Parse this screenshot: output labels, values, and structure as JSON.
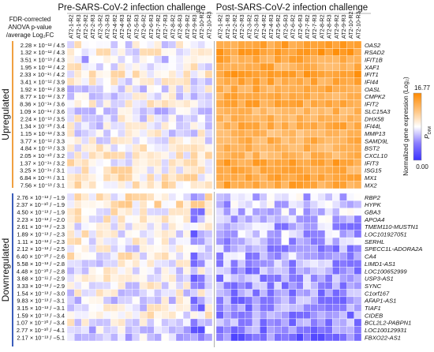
{
  "chart_data": {
    "type": "heatmap",
    "group_titles": [
      "Pre-SARS-CoV-2 infection challenge",
      "Post-SARS-CoV-2 infection challenge"
    ],
    "stat_header": [
      "FDR-corrected",
      "ANOVA p-value",
      "/average Log₂FC"
    ],
    "columns_pre": [
      "AT2-1-R2",
      "AT2-1-R3",
      "AT2-2-R2",
      "AT2-2-R3",
      "AT2-3-R2",
      "AT2-3-R3",
      "AT2-4-R2",
      "AT2-4-R3",
      "AT2-5-R2",
      "AT2-5-R3",
      "AT2-6-R2",
      "AT2-6-R3",
      "AT2-7-R2",
      "AT2-7-R3",
      "AT2-8-R2",
      "AT2-8-R3",
      "AT2-9-R2",
      "AT2-9-R3",
      "AT2-10-R2",
      "AT2-10-R3"
    ],
    "columns_post": [
      "AT2-1-R2",
      "AT2-1-R3",
      "AT2-2-R2",
      "AT2-2-R3",
      "AT2-3-R2",
      "AT2-3-R3",
      "AT2-4-R2",
      "AT2-4-R3",
      "AT2-5-R2",
      "AT2-5-R3",
      "AT2-6-R2",
      "AT2-6-R3",
      "AT2-7-R2",
      "AT2-7-R3",
      "AT2-8-R2",
      "AT2-8-R3",
      "AT2-9-R2",
      "AT2-9-R3",
      "AT2-10-R2",
      "AT2-10-R3"
    ],
    "group_labels": [
      "Upregulated",
      "Downregulated"
    ],
    "upregulated": {
      "genes": [
        "OAS2",
        "RSAD2",
        "IFIT1B",
        "XAF1",
        "IFIT1",
        "IFI44",
        "OASL",
        "CMPK2",
        "IFIT2",
        "SLC15A3",
        "DHX58",
        "IFI44L",
        "MMP13",
        "SAMD9L",
        "BST2",
        "CXCL10",
        "IFIT3",
        "ISG15",
        "MX1",
        "MX2"
      ],
      "stats": [
        "2.28 × 10⁻¹² / 4.5",
        "1.32 × 10⁻¹² / 4.3",
        "3.51 × 10⁻¹³ / 4.3",
        "1.95 × 10⁻¹² / 4.2",
        "2.33 × 10⁻¹⁵ / 4.2",
        "3.41 × 10⁻¹² / 3.9",
        "1.92 × 10⁻¹¹ / 3.8",
        "8.77 × 10⁻¹² / 3.7",
        "8.36 × 10⁻¹⁶ / 3.6",
        "1.09 × 10⁻¹⁴ / 3.6",
        "2.24 × 10⁻¹³ / 3.5",
        "1.34 × 10⁻¹⁰ / 3.4",
        "1.15 × 10⁻¹³ / 3.3",
        "3.77 × 10⁻¹² / 3.3",
        "4.84 × 10⁻¹³ / 3.3",
        "2.05 × 10⁻¹⁰ / 3.2",
        "1.37 × 10⁻¹⁵ / 3.2",
        "3.25 × 10⁻¹⁵ / 3.1",
        "6.84 × 10⁻¹⁵ / 3.1",
        "7.56 × 10⁻¹³ / 3.1"
      ],
      "pre_level": [
        0.5,
        0.52,
        0.42,
        0.52,
        0.55,
        0.5,
        0.48,
        0.48,
        0.52,
        0.45,
        0.5,
        0.48,
        0.48,
        0.5,
        0.52,
        0.55,
        0.55,
        0.56,
        0.58,
        0.58
      ],
      "post_level": [
        0.88,
        0.92,
        0.86,
        0.84,
        0.9,
        0.86,
        0.84,
        0.84,
        0.86,
        0.8,
        0.82,
        0.84,
        0.78,
        0.82,
        0.8,
        0.8,
        0.88,
        0.84,
        0.86,
        0.86
      ]
    },
    "downregulated": {
      "genes": [
        "RBP2",
        "HYPK",
        "GBA3",
        "APOA4",
        "TMEM110-MUSTN1",
        "LOC101927051",
        "SERHL",
        "SPECC1L-ADORA2A",
        "CA4",
        "LIMD1-AS1",
        "LOC100652999",
        "USP3-AS1",
        "SYNC",
        "C1orf167",
        "AFAP1-AS1",
        "TIAF1",
        "CIDEB",
        "BCL2L2-PABPN1",
        "LOC100129931",
        "FBXO22-AS1"
      ],
      "stats": [
        "2.76 × 10⁻¹³ / −1.9",
        "2.37 × 10⁻¹⁰ / −1.9",
        "4.50 × 10⁻¹³ / −1.9",
        "2.23 × 10⁻¹³ / −2.0",
        "2.61 × 10⁻¹³ / −2.3",
        "1.89 × 10⁻¹³ / −2.3",
        "1.11 × 10⁻¹³ / −2.3",
        "2.12 × 10⁻¹³ / −2.5",
        "6.40 × 10⁻¹⁰ / −2.6",
        "5.58 × 10⁻¹³ / −2.8",
        "4.48 × 10⁻¹⁰ / −2.8",
        "3.68 × 10⁻¹¹ / −2.9",
        "3.33 × 10⁻¹³ / −2.9",
        "1.54 × 10⁻¹³ / −3.0",
        "9.83 × 10⁻¹³ / −3.1",
        "3.15 × 10⁻¹³ / −3.1",
        "1.59 × 10⁻¹³ / −3.4",
        "1.07 × 10⁻¹⁰ / −3.4",
        "2.77 × 10⁻¹⁰ / −4.1",
        "2.17 × 10⁻¹³ / −5.1"
      ],
      "pre_level": [
        0.56,
        0.58,
        0.55,
        0.55,
        0.5,
        0.52,
        0.52,
        0.5,
        0.54,
        0.5,
        0.48,
        0.5,
        0.5,
        0.48,
        0.46,
        0.48,
        0.52,
        0.5,
        0.44,
        0.4
      ],
      "post_level": [
        0.4,
        0.38,
        0.4,
        0.38,
        0.34,
        0.36,
        0.36,
        0.32,
        0.34,
        0.32,
        0.3,
        0.32,
        0.32,
        0.3,
        0.28,
        0.3,
        0.28,
        0.28,
        0.24,
        0.2
      ]
    },
    "colorbar": {
      "label": "Normalized gene expression (Log₂)",
      "max_label": "16.77",
      "min_label": "0.00",
      "symbol": "P",
      "subscript": "DIM",
      "colors": [
        "#3b32ff",
        "#8a7cff",
        "#ffffff",
        "#ffc27a",
        "#ff8a00"
      ]
    },
    "colors": {
      "up_bar": "#f0a040",
      "down_bar": "#3a5dbb",
      "grid": "#ffffff"
    }
  }
}
